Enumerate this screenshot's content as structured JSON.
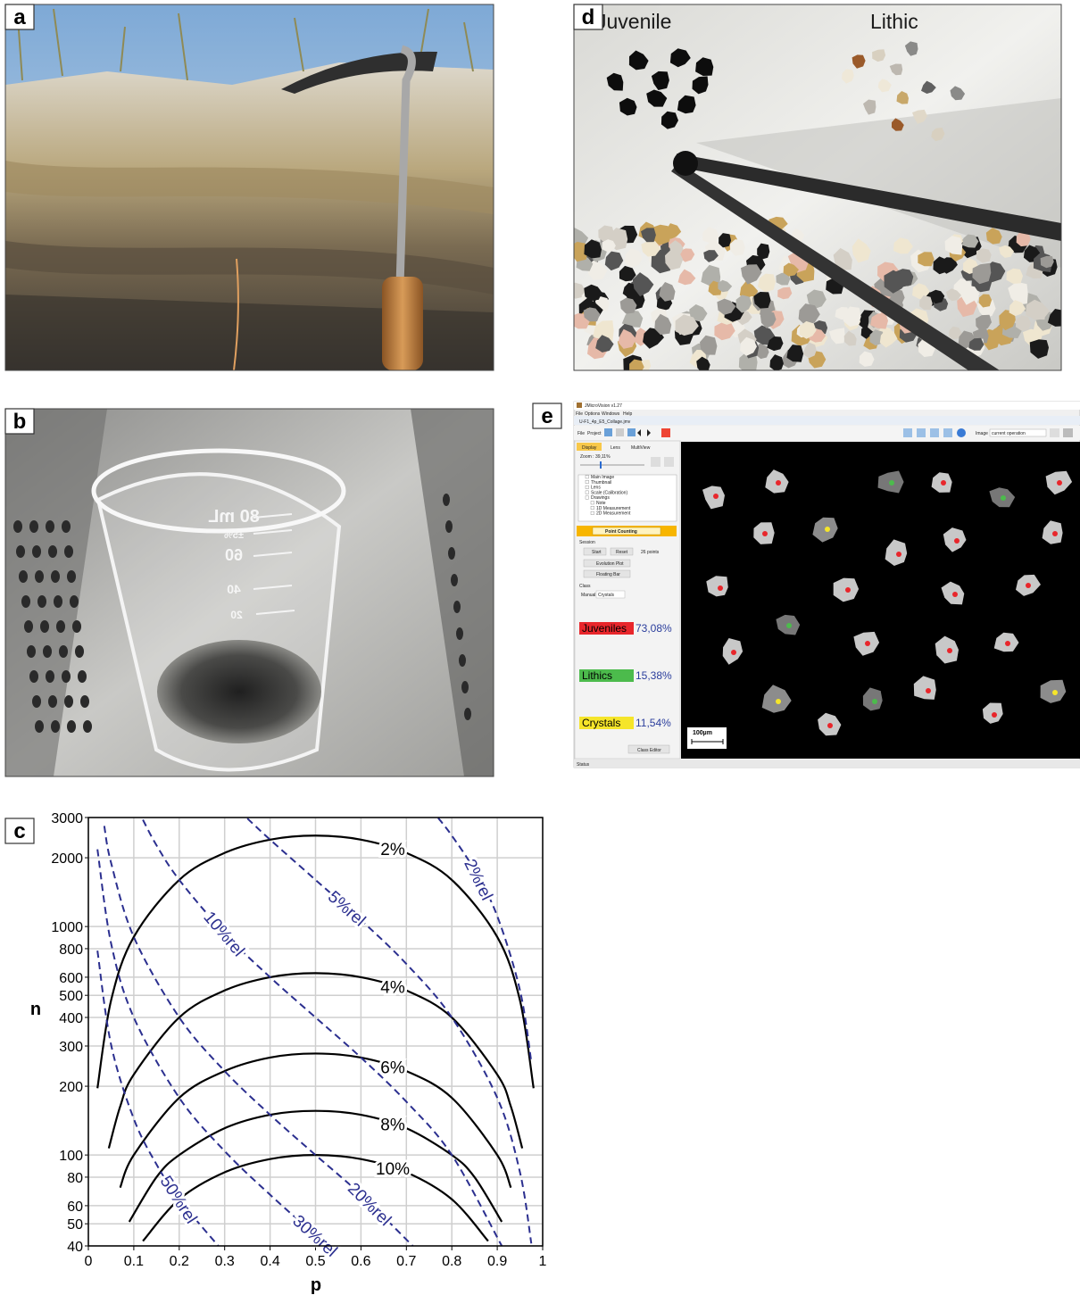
{
  "panel_labels": [
    "a",
    "b",
    "c",
    "d",
    "e"
  ],
  "panel_b": {
    "beaker_marks": [
      "80 mL",
      "±5%",
      "60",
      "40",
      "20"
    ]
  },
  "panel_d": {
    "left_label": "Juvenile",
    "right_label": "Lithic"
  },
  "panel_e": {
    "window_title": "JMicroVision v1.27",
    "file": "U-F1_4p_E5_Collage.jmv",
    "menu": [
      "File",
      "Options",
      "Windows",
      "Help"
    ],
    "toolbar": [
      "File",
      "Project"
    ],
    "image_label": "Image",
    "image_select": "current operation",
    "tabs": [
      "Display",
      "Lens",
      "MultiView"
    ],
    "zoom": "Zoom : 39,11%",
    "layers": [
      "Main Image",
      "Thumbnail",
      "Lens",
      "Scale (Calibration)",
      "Drawings",
      "Note",
      "1D Measurement",
      "2D Measurement"
    ],
    "tool": "Point Counting",
    "session": "Session",
    "start": "Start",
    "reset": "Reset",
    "points": "26 points",
    "evolution": "Evolution Plot",
    "floating": "Floating Bar",
    "class": "Class",
    "manual": "Manual",
    "class_select": "Crystals",
    "classes": [
      {
        "name": "Juveniles",
        "percent": "73,08%",
        "color": "#e8262b"
      },
      {
        "name": "Lithics",
        "percent": "15,38%",
        "color": "#4cbb4c"
      },
      {
        "name": "Crystals",
        "percent": "11,54%",
        "color": "#f5e52a"
      }
    ],
    "class_editor": "Class Editor",
    "scale": "100µm",
    "status": "Status"
  },
  "chart_data": {
    "type": "line",
    "xlabel": "p",
    "ylabel": "n",
    "xlim": [
      0,
      1
    ],
    "ylim": [
      40,
      3000
    ],
    "log_y": true,
    "grid": true,
    "xticks": [
      0,
      0.1,
      0.2,
      0.3,
      0.4,
      0.5,
      0.6,
      0.7,
      0.8,
      0.9,
      1
    ],
    "yticks": [
      40,
      50,
      60,
      80,
      100,
      200,
      300,
      400,
      500,
      600,
      800,
      1000,
      2000,
      3000
    ],
    "series": [
      {
        "name": "2%",
        "color": "#000000",
        "dashed": false,
        "x": [
          0.02,
          0.05,
          0.1,
          0.2,
          0.3,
          0.4,
          0.5,
          0.6,
          0.7,
          0.8,
          0.9,
          0.95,
          0.98
        ],
        "values": [
          196,
          475,
          900,
          1600,
          2100,
          2400,
          2500,
          2400,
          2100,
          1600,
          900,
          475,
          196
        ]
      },
      {
        "name": "4%",
        "color": "#000000",
        "dashed": false,
        "x": [
          0.045,
          0.07,
          0.1,
          0.2,
          0.3,
          0.4,
          0.5,
          0.6,
          0.7,
          0.8,
          0.9,
          0.93,
          0.955
        ],
        "values": [
          107,
          163,
          225,
          400,
          525,
          600,
          625,
          600,
          525,
          400,
          225,
          163,
          107
        ]
      },
      {
        "name": "6%",
        "color": "#000000",
        "dashed": false,
        "x": [
          0.07,
          0.1,
          0.2,
          0.3,
          0.4,
          0.5,
          0.6,
          0.7,
          0.8,
          0.9,
          0.93
        ],
        "values": [
          72,
          100,
          178,
          233,
          267,
          278,
          267,
          233,
          178,
          100,
          72
        ]
      },
      {
        "name": "8%",
        "color": "#000000",
        "dashed": false,
        "x": [
          0.09,
          0.15,
          0.2,
          0.3,
          0.4,
          0.5,
          0.6,
          0.7,
          0.8,
          0.85,
          0.91
        ],
        "values": [
          51,
          80,
          100,
          131,
          150,
          156,
          150,
          131,
          100,
          80,
          51
        ]
      },
      {
        "name": "10%",
        "color": "#000000",
        "dashed": false,
        "x": [
          0.12,
          0.2,
          0.3,
          0.4,
          0.5,
          0.6,
          0.7,
          0.8,
          0.88
        ],
        "values": [
          42,
          64,
          84,
          96,
          100,
          96,
          84,
          64,
          42
        ]
      },
      {
        "name": "2%rel",
        "color": "#2b2f8f",
        "dashed": true,
        "x": [
          0.77,
          0.8,
          0.85,
          0.9,
          0.95,
          0.975
        ],
        "values": [
          2987,
          2500,
          1765,
          1111,
          526,
          256
        ]
      },
      {
        "name": "5%rel",
        "color": "#2b2f8f",
        "dashed": true,
        "x": [
          0.35,
          0.4,
          0.5,
          0.6,
          0.7,
          0.8,
          0.9,
          0.95,
          0.975
        ],
        "values": [
          2971,
          2400,
          1600,
          1067,
          686,
          400,
          178,
          84,
          41
        ]
      },
      {
        "name": "10%rel",
        "color": "#2b2f8f",
        "dashed": true,
        "x": [
          0.12,
          0.15,
          0.2,
          0.3,
          0.4,
          0.5,
          0.6,
          0.7,
          0.8,
          0.91
        ],
        "values": [
          2933,
          2267,
          1600,
          933,
          600,
          400,
          267,
          171,
          100,
          40
        ]
      },
      {
        "name": "20%rel",
        "color": "#2b2f8f",
        "dashed": true,
        "x": [
          0.035,
          0.05,
          0.1,
          0.2,
          0.3,
          0.4,
          0.5,
          0.6,
          0.714
        ],
        "values": [
          2757,
          1900,
          900,
          400,
          233,
          150,
          100,
          67,
          40
        ]
      },
      {
        "name": "30%rel",
        "color": "#2b2f8f",
        "dashed": true,
        "x": [
          0.02,
          0.05,
          0.1,
          0.2,
          0.3,
          0.4,
          0.526
        ],
        "values": [
          2178,
          844,
          400,
          178,
          104,
          67,
          40
        ]
      },
      {
        "name": "50%rel",
        "color": "#2b2f8f",
        "dashed": true,
        "x": [
          0.02,
          0.05,
          0.1,
          0.15,
          0.2,
          0.286
        ],
        "values": [
          784,
          304,
          144,
          91,
          64,
          40
        ]
      }
    ]
  }
}
